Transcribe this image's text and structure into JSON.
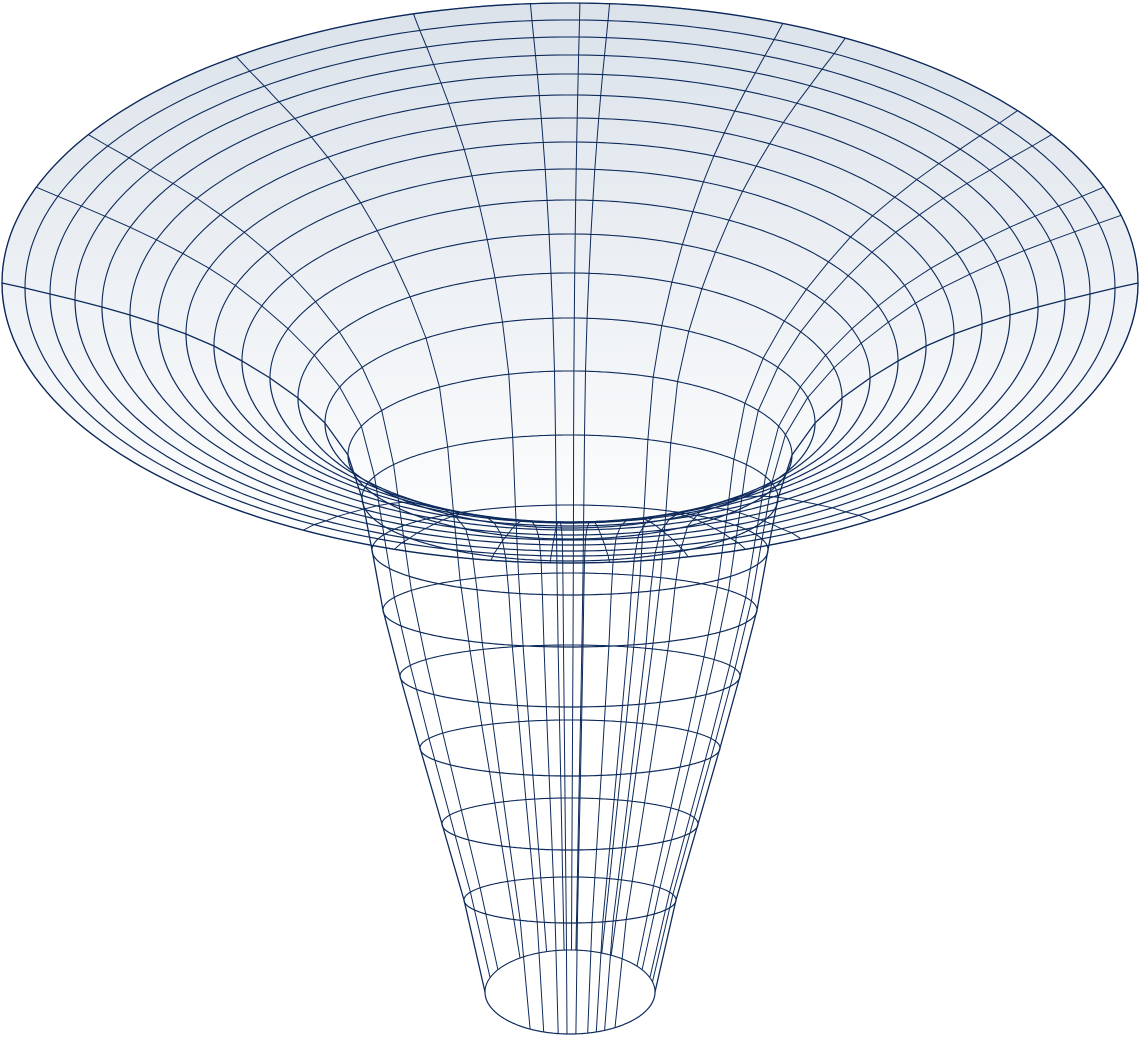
{
  "figure": {
    "kind": "wireframe-funnel-surface",
    "colors": {
      "line": "#0d2a5c",
      "fill_top": "#dbe2ea",
      "fill_bottom": "#ffffff",
      "background": "#ffffff"
    }
  }
}
